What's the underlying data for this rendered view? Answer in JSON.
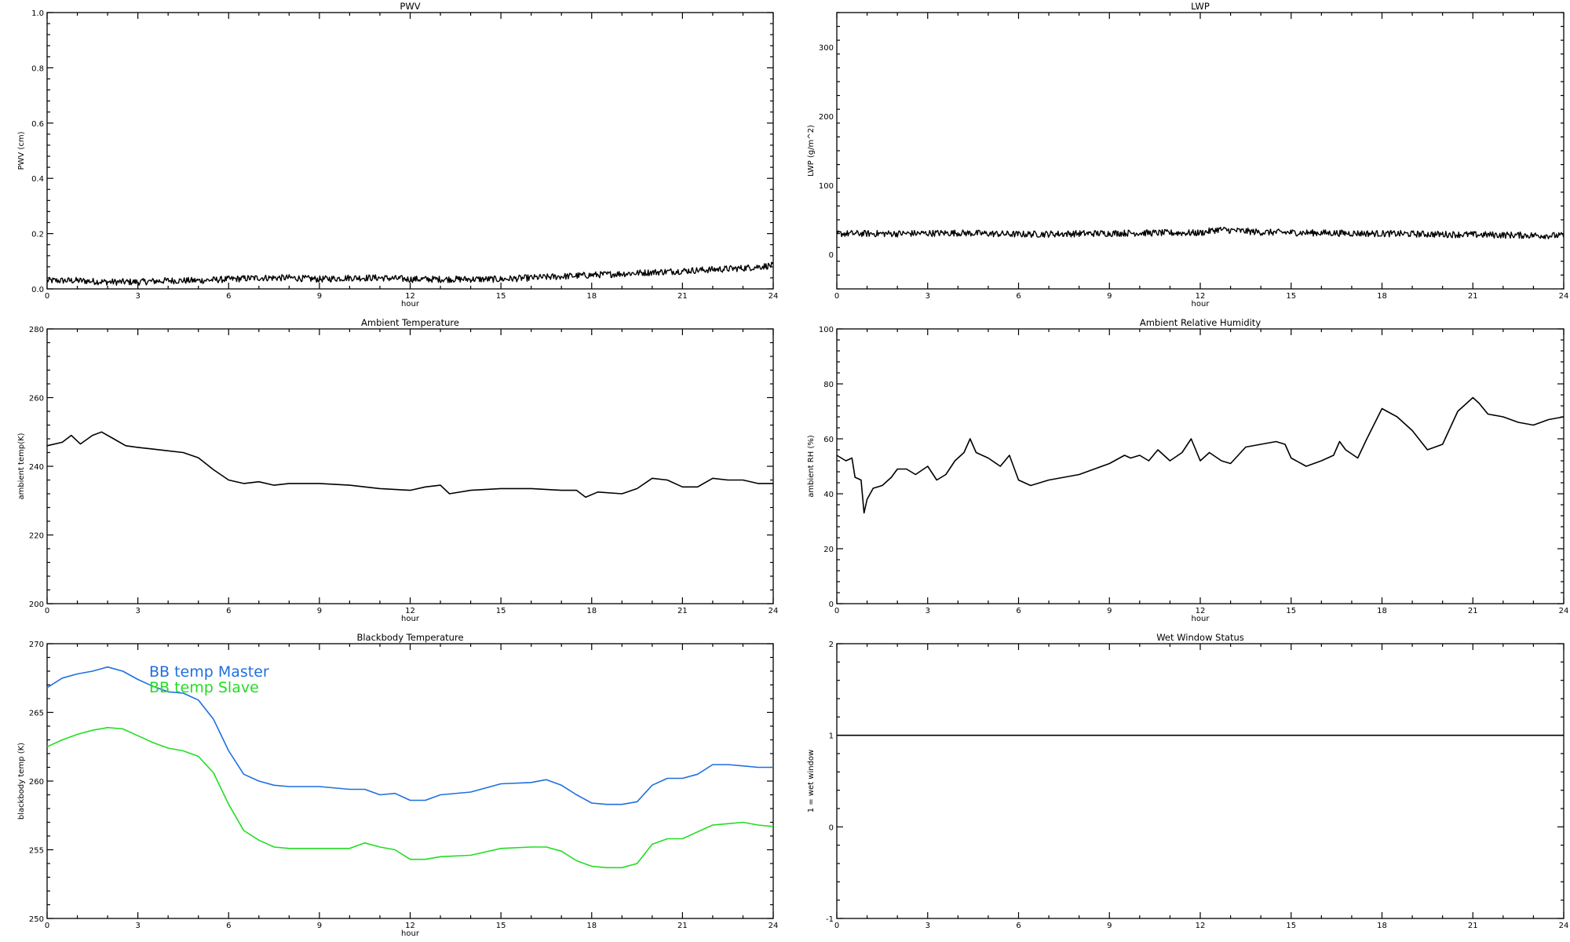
{
  "chart_data": [
    {
      "type": "line",
      "title": "PWV",
      "xlabel": "hour",
      "ylabel": "PWV (cm)",
      "xlim": [
        0,
        24
      ],
      "ylim": [
        0,
        1
      ],
      "xticks": [
        0,
        3,
        6,
        9,
        12,
        15,
        18,
        21,
        24
      ],
      "yticks": [
        0,
        0.2,
        0.4,
        0.6,
        0.8,
        1.0
      ],
      "ytick_labels": [
        "0.0",
        "0.2",
        "0.4",
        "0.6",
        "0.8",
        "1.0"
      ],
      "noisy": true,
      "series": [
        {
          "color": "#000000",
          "x": [
            0,
            1,
            2,
            3,
            4,
            5,
            6,
            7,
            8,
            9,
            10,
            11,
            12,
            13,
            14,
            15,
            16,
            17,
            18,
            19,
            20,
            21,
            22,
            23,
            24
          ],
          "y": [
            0.03,
            0.03,
            0.025,
            0.025,
            0.03,
            0.03,
            0.035,
            0.04,
            0.04,
            0.035,
            0.04,
            0.04,
            0.035,
            0.035,
            0.035,
            0.035,
            0.04,
            0.045,
            0.05,
            0.055,
            0.06,
            0.065,
            0.07,
            0.075,
            0.085
          ]
        }
      ]
    },
    {
      "type": "line",
      "title": "LWP",
      "xlabel": "hour",
      "ylabel": "LWP (g/m^2)",
      "xlim": [
        0,
        24
      ],
      "ylim": [
        -50,
        350
      ],
      "xticks": [
        0,
        3,
        6,
        9,
        12,
        15,
        18,
        21,
        24
      ],
      "yticks": [
        0,
        100,
        200,
        300
      ],
      "noisy": true,
      "series": [
        {
          "color": "#000000",
          "x": [
            0,
            2,
            4,
            6,
            8,
            10,
            12,
            12.6,
            14,
            16,
            18,
            20,
            22,
            24
          ],
          "y": [
            30,
            30,
            31,
            29,
            30,
            31,
            31,
            36,
            32,
            31,
            30,
            29,
            28,
            27
          ]
        }
      ]
    },
    {
      "type": "line",
      "title": "Ambient Temperature",
      "xlabel": "hour",
      "ylabel": "ambient temp(K)",
      "xlim": [
        0,
        24
      ],
      "ylim": [
        200,
        280
      ],
      "xticks": [
        0,
        3,
        6,
        9,
        12,
        15,
        18,
        21,
        24
      ],
      "yticks": [
        200,
        220,
        240,
        260,
        280
      ],
      "noisy": false,
      "series": [
        {
          "color": "#000000",
          "x": [
            0,
            0.5,
            0.8,
            1.1,
            1.5,
            1.8,
            2.2,
            2.6,
            3.0,
            3.5,
            4.0,
            4.5,
            5.0,
            5.5,
            6.0,
            6.5,
            7.0,
            7.5,
            8.0,
            9.0,
            10.0,
            11.0,
            12.0,
            12.5,
            13.0,
            13.3,
            14.0,
            15.0,
            16.0,
            17.0,
            17.5,
            17.8,
            18.2,
            19.0,
            19.5,
            20.0,
            20.5,
            21.0,
            21.5,
            22.0,
            22.5,
            23.0,
            23.5,
            24.0
          ],
          "y": [
            246,
            247,
            249,
            246.5,
            249,
            250,
            248,
            246,
            245.5,
            245,
            244.5,
            244,
            242.5,
            239,
            236,
            235,
            235.5,
            234.5,
            235,
            235,
            234.5,
            233.5,
            233,
            234,
            234.5,
            232,
            233,
            233.5,
            233.5,
            233,
            233,
            231,
            232.5,
            232,
            233.5,
            236.5,
            236,
            234,
            234,
            236.5,
            236,
            236,
            235,
            235
          ]
        }
      ]
    },
    {
      "type": "line",
      "title": "Ambient Relative Humidity",
      "xlabel": "hour",
      "ylabel": "ambient RH (%)",
      "xlim": [
        0,
        24
      ],
      "ylim": [
        0,
        100
      ],
      "xticks": [
        0,
        3,
        6,
        9,
        12,
        15,
        18,
        21,
        24
      ],
      "yticks": [
        0,
        20,
        40,
        60,
        80,
        100
      ],
      "noisy": false,
      "series": [
        {
          "color": "#000000",
          "x": [
            0,
            0.3,
            0.5,
            0.6,
            0.8,
            0.9,
            1.0,
            1.2,
            1.5,
            1.8,
            2.0,
            2.3,
            2.6,
            3.0,
            3.3,
            3.6,
            3.9,
            4.2,
            4.4,
            4.6,
            5.0,
            5.4,
            5.7,
            6.0,
            6.4,
            7.0,
            7.5,
            8.0,
            8.5,
            9.0,
            9.5,
            9.7,
            10.0,
            10.3,
            10.6,
            11.0,
            11.4,
            11.7,
            12.0,
            12.3,
            12.7,
            13.0,
            13.5,
            14.0,
            14.5,
            14.8,
            15.0,
            15.5,
            16.0,
            16.4,
            16.6,
            16.8,
            17.2,
            17.5,
            18.0,
            18.5,
            19.0,
            19.5,
            20.0,
            20.5,
            21.0,
            21.2,
            21.5,
            22.0,
            22.5,
            23.0,
            23.5,
            24.0
          ],
          "y": [
            54,
            52,
            53,
            46,
            45,
            33,
            38,
            42,
            43,
            46,
            49,
            49,
            47,
            50,
            45,
            47,
            52,
            55,
            60,
            55,
            53,
            50,
            54,
            45,
            43,
            45,
            46,
            47,
            49,
            51,
            54,
            53,
            54,
            52,
            56,
            52,
            55,
            60,
            52,
            55,
            52,
            51,
            57,
            58,
            59,
            58,
            53,
            50,
            52,
            54,
            59,
            56,
            53,
            60,
            71,
            68,
            63,
            56,
            58,
            70,
            75,
            73,
            69,
            68,
            66,
            65,
            67,
            68
          ]
        }
      ]
    },
    {
      "type": "line",
      "title": "Blackbody Temperature",
      "xlabel": "hour",
      "ylabel": "blackbody temp (K)",
      "xlim": [
        0,
        24
      ],
      "ylim": [
        250,
        270
      ],
      "xticks": [
        0,
        3,
        6,
        9,
        12,
        15,
        18,
        21,
        24
      ],
      "yticks": [
        250,
        255,
        260,
        265,
        270
      ],
      "noisy": false,
      "legend": [
        "BB temp Master",
        "BB temp Slave"
      ],
      "series": [
        {
          "name": "BB temp Master",
          "color": "#1f6fe0",
          "x": [
            0,
            0.5,
            1.0,
            1.5,
            2.0,
            2.5,
            3.0,
            3.5,
            4.0,
            4.5,
            5.0,
            5.5,
            6.0,
            6.5,
            7.0,
            7.5,
            8.0,
            9.0,
            10.0,
            10.5,
            11.0,
            11.5,
            12.0,
            12.5,
            13.0,
            14.0,
            15.0,
            16.0,
            16.5,
            17.0,
            17.5,
            18.0,
            18.5,
            19.0,
            19.5,
            20.0,
            20.5,
            21.0,
            21.5,
            22.0,
            22.5,
            23.0,
            23.5,
            24.0
          ],
          "y": [
            266.8,
            267.5,
            267.8,
            268,
            268.3,
            268,
            267.4,
            266.9,
            266.5,
            266.4,
            265.9,
            264.5,
            262.2,
            260.5,
            260,
            259.7,
            259.6,
            259.6,
            259.4,
            259.4,
            259,
            259.1,
            258.6,
            258.6,
            259,
            259.2,
            259.8,
            259.9,
            260.1,
            259.7,
            259,
            258.4,
            258.3,
            258.3,
            258.5,
            259.7,
            260.2,
            260.2,
            260.5,
            261.2,
            261.2,
            261.1,
            261,
            261
          ]
        },
        {
          "name": "BB temp Slave",
          "color": "#22dd22",
          "x": [
            0,
            0.5,
            1.0,
            1.5,
            2.0,
            2.5,
            3.0,
            3.5,
            4.0,
            4.5,
            5.0,
            5.5,
            6.0,
            6.5,
            7.0,
            7.5,
            8.0,
            9.0,
            10.0,
            10.5,
            11.0,
            11.5,
            12.0,
            12.5,
            13.0,
            14.0,
            15.0,
            16.0,
            16.5,
            17.0,
            17.5,
            18.0,
            18.5,
            19.0,
            19.5,
            20.0,
            20.5,
            21.0,
            21.5,
            22.0,
            22.5,
            23.0,
            23.5,
            24.0
          ],
          "y": [
            262.5,
            263,
            263.4,
            263.7,
            263.9,
            263.8,
            263.3,
            262.8,
            262.4,
            262.2,
            261.8,
            260.6,
            258.3,
            256.4,
            255.7,
            255.2,
            255.1,
            255.1,
            255.1,
            255.5,
            255.2,
            255,
            254.3,
            254.3,
            254.5,
            254.6,
            255.1,
            255.2,
            255.2,
            254.9,
            254.2,
            253.8,
            253.7,
            253.7,
            254,
            255.4,
            255.8,
            255.8,
            256.3,
            256.8,
            256.9,
            257,
            256.8,
            256.7
          ]
        }
      ]
    },
    {
      "type": "line",
      "title": "Wet Window Status",
      "xlabel": "",
      "ylabel": "1 = wet window",
      "xlim": [
        0,
        24
      ],
      "ylim": [
        -1,
        2
      ],
      "xticks": [
        0,
        3,
        6,
        9,
        12,
        15,
        18,
        21,
        24
      ],
      "yticks": [
        -1,
        0,
        1,
        2
      ],
      "noisy": false,
      "series": [
        {
          "color": "#000000",
          "x": [
            0,
            24
          ],
          "y": [
            1,
            1
          ]
        }
      ]
    }
  ]
}
